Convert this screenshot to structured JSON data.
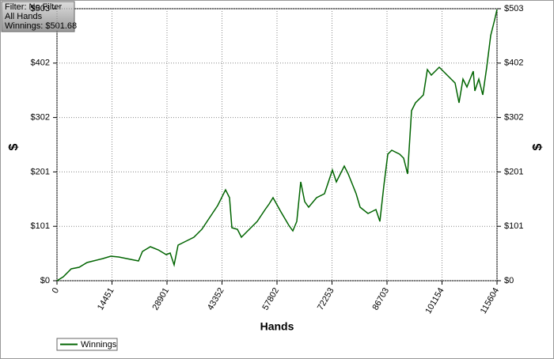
{
  "chart_data": {
    "type": "line",
    "info": [
      "Filter: No Filter",
      "All Hands",
      "Winnings: $501.68"
    ],
    "x_label": "Hands",
    "y_label": "$",
    "y2_label": "$",
    "x": [
      0,
      1663,
      3743,
      5822,
      7901,
      12059,
      14139,
      16218,
      18297,
      21416,
      22455,
      24535,
      26614,
      28693,
      29733,
      30772,
      31812,
      33891,
      35970,
      38050,
      40129,
      42208,
      44287,
      45327,
      45951,
      47406,
      48446,
      50525,
      52604,
      54684,
      55723,
      56763,
      58842,
      60921,
      61961,
      63001,
      64040,
      65080,
      66119,
      68198,
      70278,
      72357,
      73397,
      75476,
      76516,
      78595,
      79634,
      81714,
      83793,
      84833,
      85872,
      86912,
      87952,
      90031,
      91070,
      92110,
      93149,
      94189,
      96268,
      97308,
      98348,
      100427,
      102506,
      104585,
      105625,
      106665,
      107704,
      109368,
      109784,
      110823,
      111863,
      112903,
      113942,
      114982,
      115604
    ],
    "series": [
      {
        "name": "Winnings",
        "color": "#006400",
        "values": [
          0,
          7.3,
          21.9,
          24.9,
          33.6,
          40.9,
          45.3,
          43.9,
          40.9,
          36.6,
          54.1,
          62.9,
          57.0,
          48.3,
          51.2,
          29.2,
          65.8,
          73.1,
          80.4,
          95.0,
          117.0,
          138.9,
          168.2,
          153.5,
          98.0,
          95.0,
          80.4,
          95.0,
          109.7,
          131.6,
          141.8,
          153.5,
          127.2,
          102.3,
          92.1,
          109.7,
          182.8,
          146.2,
          136.0,
          153.5,
          160.8,
          204.7,
          182.8,
          212.0,
          197.4,
          160.8,
          136.0,
          124.3,
          131.6,
          109.7,
          175.5,
          233.9,
          241.3,
          233.9,
          226.6,
          197.4,
          314.4,
          329.0,
          343.6,
          390.4,
          380.2,
          394.8,
          380.2,
          365.6,
          329.0,
          372.9,
          358.2,
          387.5,
          350.9,
          372.9,
          343.6,
          394.8,
          453.3,
          482.5,
          501.68
        ]
      }
    ],
    "xlim": [
      0,
      115604
    ],
    "xticks": [
      0,
      14451,
      28901,
      43352,
      57802,
      72253,
      86703,
      101154,
      115604
    ],
    "ylim": [
      0,
      503
    ],
    "yticks": [
      {
        "value": 0,
        "label": "$0"
      },
      {
        "value": 100.6,
        "label": "$101"
      },
      {
        "value": 201.2,
        "label": "$201"
      },
      {
        "value": 301.8,
        "label": "$302"
      },
      {
        "value": 402.4,
        "label": "$402"
      },
      {
        "value": 503,
        "label": "$503"
      }
    ],
    "grid": true
  }
}
